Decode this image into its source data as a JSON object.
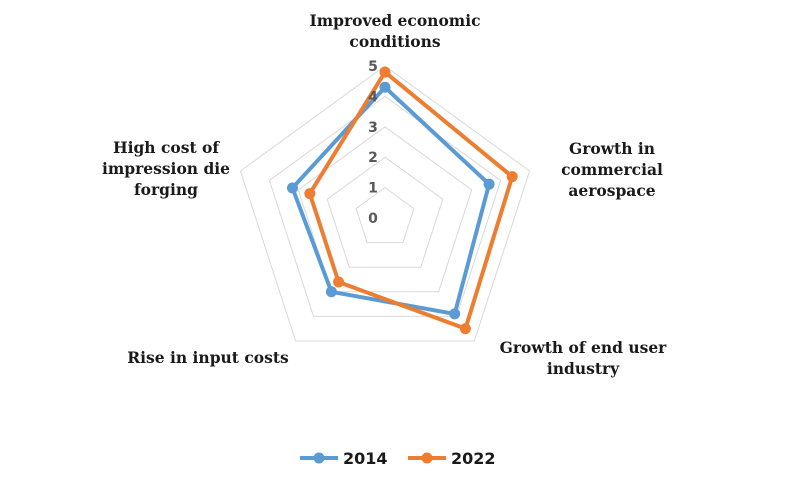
{
  "chart_data": {
    "type": "radar",
    "categories": [
      [
        "Improved economic",
        "conditions"
      ],
      [
        "Growth in",
        "commercial",
        "aerospace"
      ],
      [
        "Growth of end user",
        "industry"
      ],
      [
        "Rise in input costs"
      ],
      [
        "High cost of",
        "impression die",
        "forging"
      ]
    ],
    "series": [
      {
        "name": "2014",
        "color": "#5b9bd5",
        "values": [
          4.3,
          3.6,
          3.9,
          3.0,
          3.2
        ]
      },
      {
        "name": "2022",
        "color": "#ed7d31",
        "values": [
          4.8,
          4.4,
          4.5,
          2.6,
          2.6
        ]
      }
    ],
    "ticks": [
      "0",
      "1",
      "2",
      "3",
      "4",
      "5"
    ],
    "rlim": [
      0,
      5
    ],
    "grid": true,
    "legend": "bottom"
  }
}
